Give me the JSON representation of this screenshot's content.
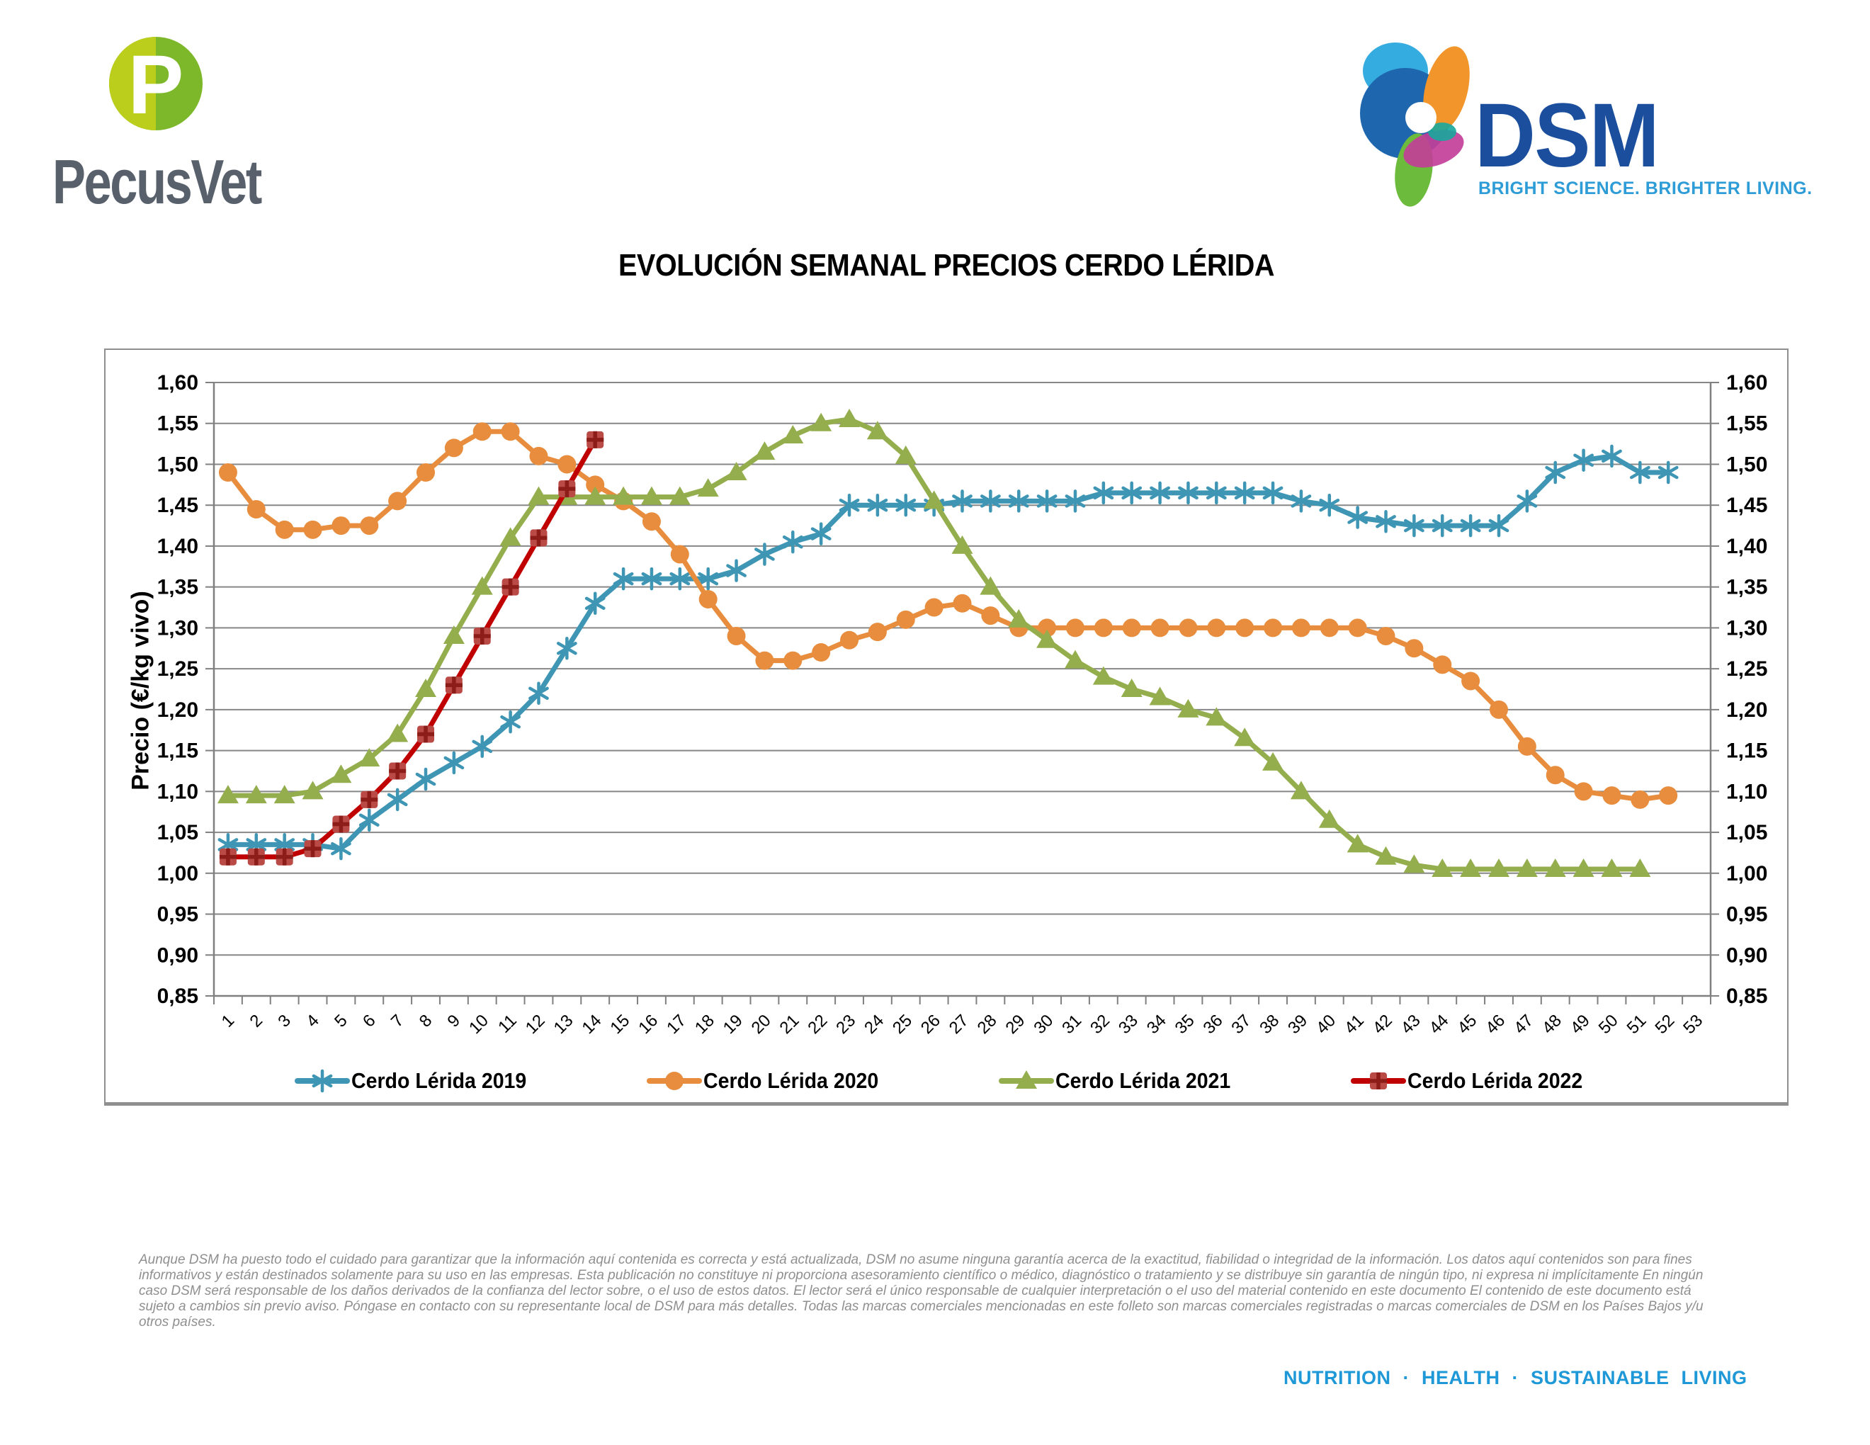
{
  "header": {
    "pecusvet_wordmark": "PecusVet",
    "pecusvet_monogram": "P",
    "dsm_wordmark": "DSM",
    "dsm_tagline": "BRIGHT SCIENCE. BRIGHTER LIVING.",
    "colors": {
      "pecus_green_light": "#BCCE1C",
      "pecus_green": "#7CB829",
      "pecus_text": "#57606B",
      "dsm_blue": "#1B4F9E",
      "dsm_tagline_blue": "#2E9CD6"
    }
  },
  "title": "EVOLUCIÓN SEMANAL PRECIOS CERDO LÉRIDA",
  "chart_data": {
    "type": "line",
    "title": "EVOLUCIÓN SEMANAL PRECIOS CERDO LÉRIDA",
    "xlabel": "",
    "ylabel": "Precio (€/kg vivo)",
    "ylim": [
      0.85,
      1.6
    ],
    "ytick_step": 0.05,
    "ytick_labels": [
      "0,85",
      "0,90",
      "0,95",
      "1,00",
      "1,05",
      "1,10",
      "1,15",
      "1,20",
      "1,25",
      "1,30",
      "1,35",
      "1,40",
      "1,45",
      "1,50",
      "1,55",
      "1,60"
    ],
    "x": [
      1,
      2,
      3,
      4,
      5,
      6,
      7,
      8,
      9,
      10,
      11,
      12,
      13,
      14,
      15,
      16,
      17,
      18,
      19,
      20,
      21,
      22,
      23,
      24,
      25,
      26,
      27,
      28,
      29,
      30,
      31,
      32,
      33,
      34,
      35,
      36,
      37,
      38,
      39,
      40,
      41,
      42,
      43,
      44,
      45,
      46,
      47,
      48,
      49,
      50,
      51,
      52,
      53
    ],
    "grid": true,
    "legend_position": "bottom",
    "axis_color": "#808080",
    "grid_color": "#878787",
    "series": [
      {
        "name": "Cerdo Lérida 2019",
        "color": "#3E96B4",
        "marker": "asterisk",
        "values": [
          1.035,
          1.035,
          1.035,
          1.035,
          1.03,
          1.065,
          1.09,
          1.115,
          1.135,
          1.155,
          1.185,
          1.22,
          1.275,
          1.33,
          1.36,
          1.36,
          1.36,
          1.36,
          1.37,
          1.39,
          1.405,
          1.415,
          1.45,
          1.45,
          1.45,
          1.45,
          1.455,
          1.455,
          1.455,
          1.455,
          1.455,
          1.465,
          1.465,
          1.465,
          1.465,
          1.465,
          1.465,
          1.465,
          1.455,
          1.45,
          1.435,
          1.43,
          1.425,
          1.425,
          1.425,
          1.425,
          1.455,
          1.49,
          1.505,
          1.51,
          1.49,
          1.49
        ]
      },
      {
        "name": "Cerdo Lérida 2020",
        "color": "#E78D3D",
        "marker": "circle",
        "values": [
          1.49,
          1.445,
          1.42,
          1.42,
          1.425,
          1.425,
          1.455,
          1.49,
          1.52,
          1.54,
          1.54,
          1.51,
          1.5,
          1.475,
          1.455,
          1.43,
          1.39,
          1.335,
          1.29,
          1.26,
          1.26,
          1.27,
          1.285,
          1.295,
          1.31,
          1.325,
          1.33,
          1.315,
          1.3,
          1.3,
          1.3,
          1.3,
          1.3,
          1.3,
          1.3,
          1.3,
          1.3,
          1.3,
          1.3,
          1.3,
          1.3,
          1.29,
          1.275,
          1.255,
          1.235,
          1.2,
          1.155,
          1.12,
          1.1,
          1.095,
          1.09,
          1.095
        ]
      },
      {
        "name": "Cerdo Lérida 2021",
        "color": "#94AE4D",
        "marker": "triangle",
        "values": [
          1.095,
          1.095,
          1.095,
          1.1,
          1.12,
          1.14,
          1.17,
          1.225,
          1.29,
          1.35,
          1.41,
          1.46,
          1.46,
          1.46,
          1.46,
          1.46,
          1.46,
          1.47,
          1.49,
          1.515,
          1.535,
          1.55,
          1.555,
          1.54,
          1.51,
          1.455,
          1.4,
          1.35,
          1.31,
          1.285,
          1.26,
          1.24,
          1.225,
          1.215,
          1.2,
          1.19,
          1.165,
          1.135,
          1.1,
          1.065,
          1.035,
          1.02,
          1.01,
          1.005,
          1.005,
          1.005,
          1.005,
          1.005,
          1.005,
          1.005,
          1.005
        ]
      },
      {
        "name": "Cerdo Lérida 2022",
        "color": "#C00000",
        "marker": "square-plus",
        "marker_fill": "#B94A46",
        "marker_plus_color": "#8C1D18",
        "values": [
          1.02,
          1.02,
          1.02,
          1.03,
          1.06,
          1.09,
          1.125,
          1.17,
          1.23,
          1.29,
          1.35,
          1.41,
          1.47,
          1.53
        ]
      }
    ]
  },
  "footer": {
    "disclaimer_lines": [
      "Aunque DSM ha puesto todo el cuidado para garantizar que la información aquí contenida es correcta y está actualizada, DSM no asume ninguna garantía acerca de la exactitud, fiabilidad o integridad de la información. Los datos aquí contenidos son para fines",
      "informativos y están destinados solamente para su uso en las empresas. Esta publicación no constituye ni proporciona asesoramiento científico o médico, diagnóstico o tratamiento y se distribuye sin garantía de ningún tipo, ni expresa ni implícitamente En ningún",
      "caso DSM será responsable de los daños derivados de la confianza del lector sobre, o el uso de estos datos. El lector será el único responsable de cualquier interpretación o el uso del material contenido en este documento El contenido de este documento está",
      "sujeto a cambios sin previo aviso. Póngase en contacto con su representante local de DSM para más detalles. Todas las marcas comerciales mencionadas en este folleto son marcas comerciales registradas o marcas comerciales de DSM en los Países Bajos y/u",
      "otros países."
    ],
    "tagline": "NUTRITION · HEALTH · SUSTAINABLE LIVING"
  }
}
